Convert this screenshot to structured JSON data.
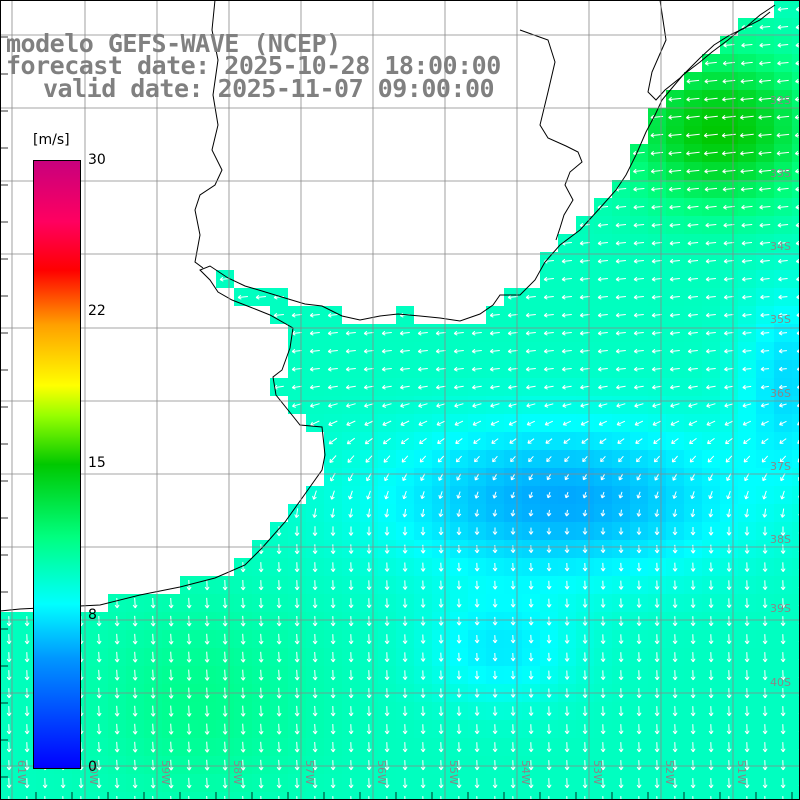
{
  "title": {
    "line1": "modelo GEFS-WAVE (NCEP)",
    "line2": "forecast date: 2025-10-28 18:00:00",
    "line3": "valid date: 2025-11-07 09:00:00"
  },
  "colorbar": {
    "unit": "[m/s]",
    "ticks": [
      "30",
      "22",
      "15",
      "8",
      "0"
    ],
    "tick_values": [
      30,
      22,
      15,
      8,
      0
    ],
    "range": [
      0,
      30
    ],
    "colors": [
      "#0000ff",
      "#0096ff",
      "#00ffff",
      "#00ff80",
      "#00c800",
      "#96ff00",
      "#ffff00",
      "#ffa000",
      "#ff0000",
      "#ff0060",
      "#c8007d"
    ]
  },
  "lat_labels": [
    "32S",
    "33S",
    "34S",
    "35S",
    "36S",
    "37S",
    "38S",
    "39S",
    "40S"
  ],
  "lon_labels": [
    "61W",
    "60W",
    "59W",
    "58W",
    "57W",
    "56W",
    "55W",
    "54W",
    "53W",
    "52W",
    "51W"
  ],
  "map": {
    "projection": "lat-lon",
    "field": "wind speed with direction vectors",
    "land_color": "#ffffff",
    "grid_color": "#888888",
    "coast_color": "#000000"
  }
}
